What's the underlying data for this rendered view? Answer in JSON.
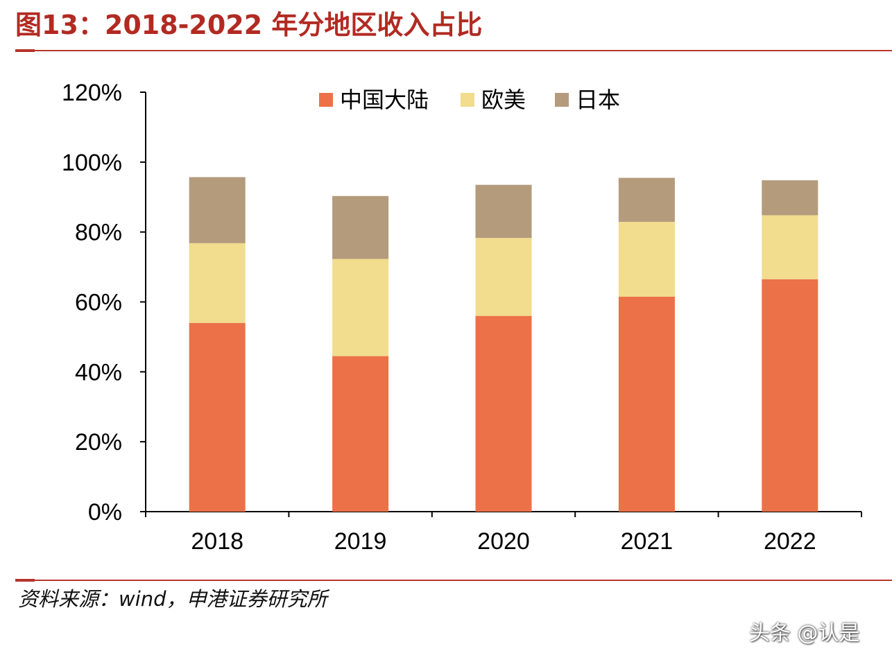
{
  "header": {
    "title": "图13：2018-2022 年分地区收入占比"
  },
  "footer": {
    "source": "资料来源：wind，申港证券研究所"
  },
  "watermark": {
    "text": "头条 @认是"
  },
  "chart_data": {
    "type": "bar",
    "stacked": true,
    "title": "图13：2018-2022 年分地区收入占比",
    "xlabel": "",
    "ylabel": "",
    "categories": [
      "2018",
      "2019",
      "2020",
      "2021",
      "2022"
    ],
    "series": [
      {
        "name": "中国大陆",
        "color": "#ec7148",
        "values": [
          54,
          44.5,
          56,
          61.5,
          66.5
        ]
      },
      {
        "name": "欧美",
        "color": "#f2dc8e",
        "values": [
          22.8,
          27.8,
          22.3,
          21.4,
          18.3
        ]
      },
      {
        "name": "日本",
        "color": "#b39b7c",
        "values": [
          18.9,
          18,
          15.2,
          12.6,
          10
        ]
      }
    ],
    "ylim": [
      0,
      120
    ],
    "yticks": [
      0,
      20,
      40,
      60,
      80,
      100,
      120
    ],
    "ytick_labels": [
      "0%",
      "20%",
      "40%",
      "60%",
      "80%",
      "100%",
      "120%"
    ],
    "grid": false,
    "legend": "top-center"
  }
}
